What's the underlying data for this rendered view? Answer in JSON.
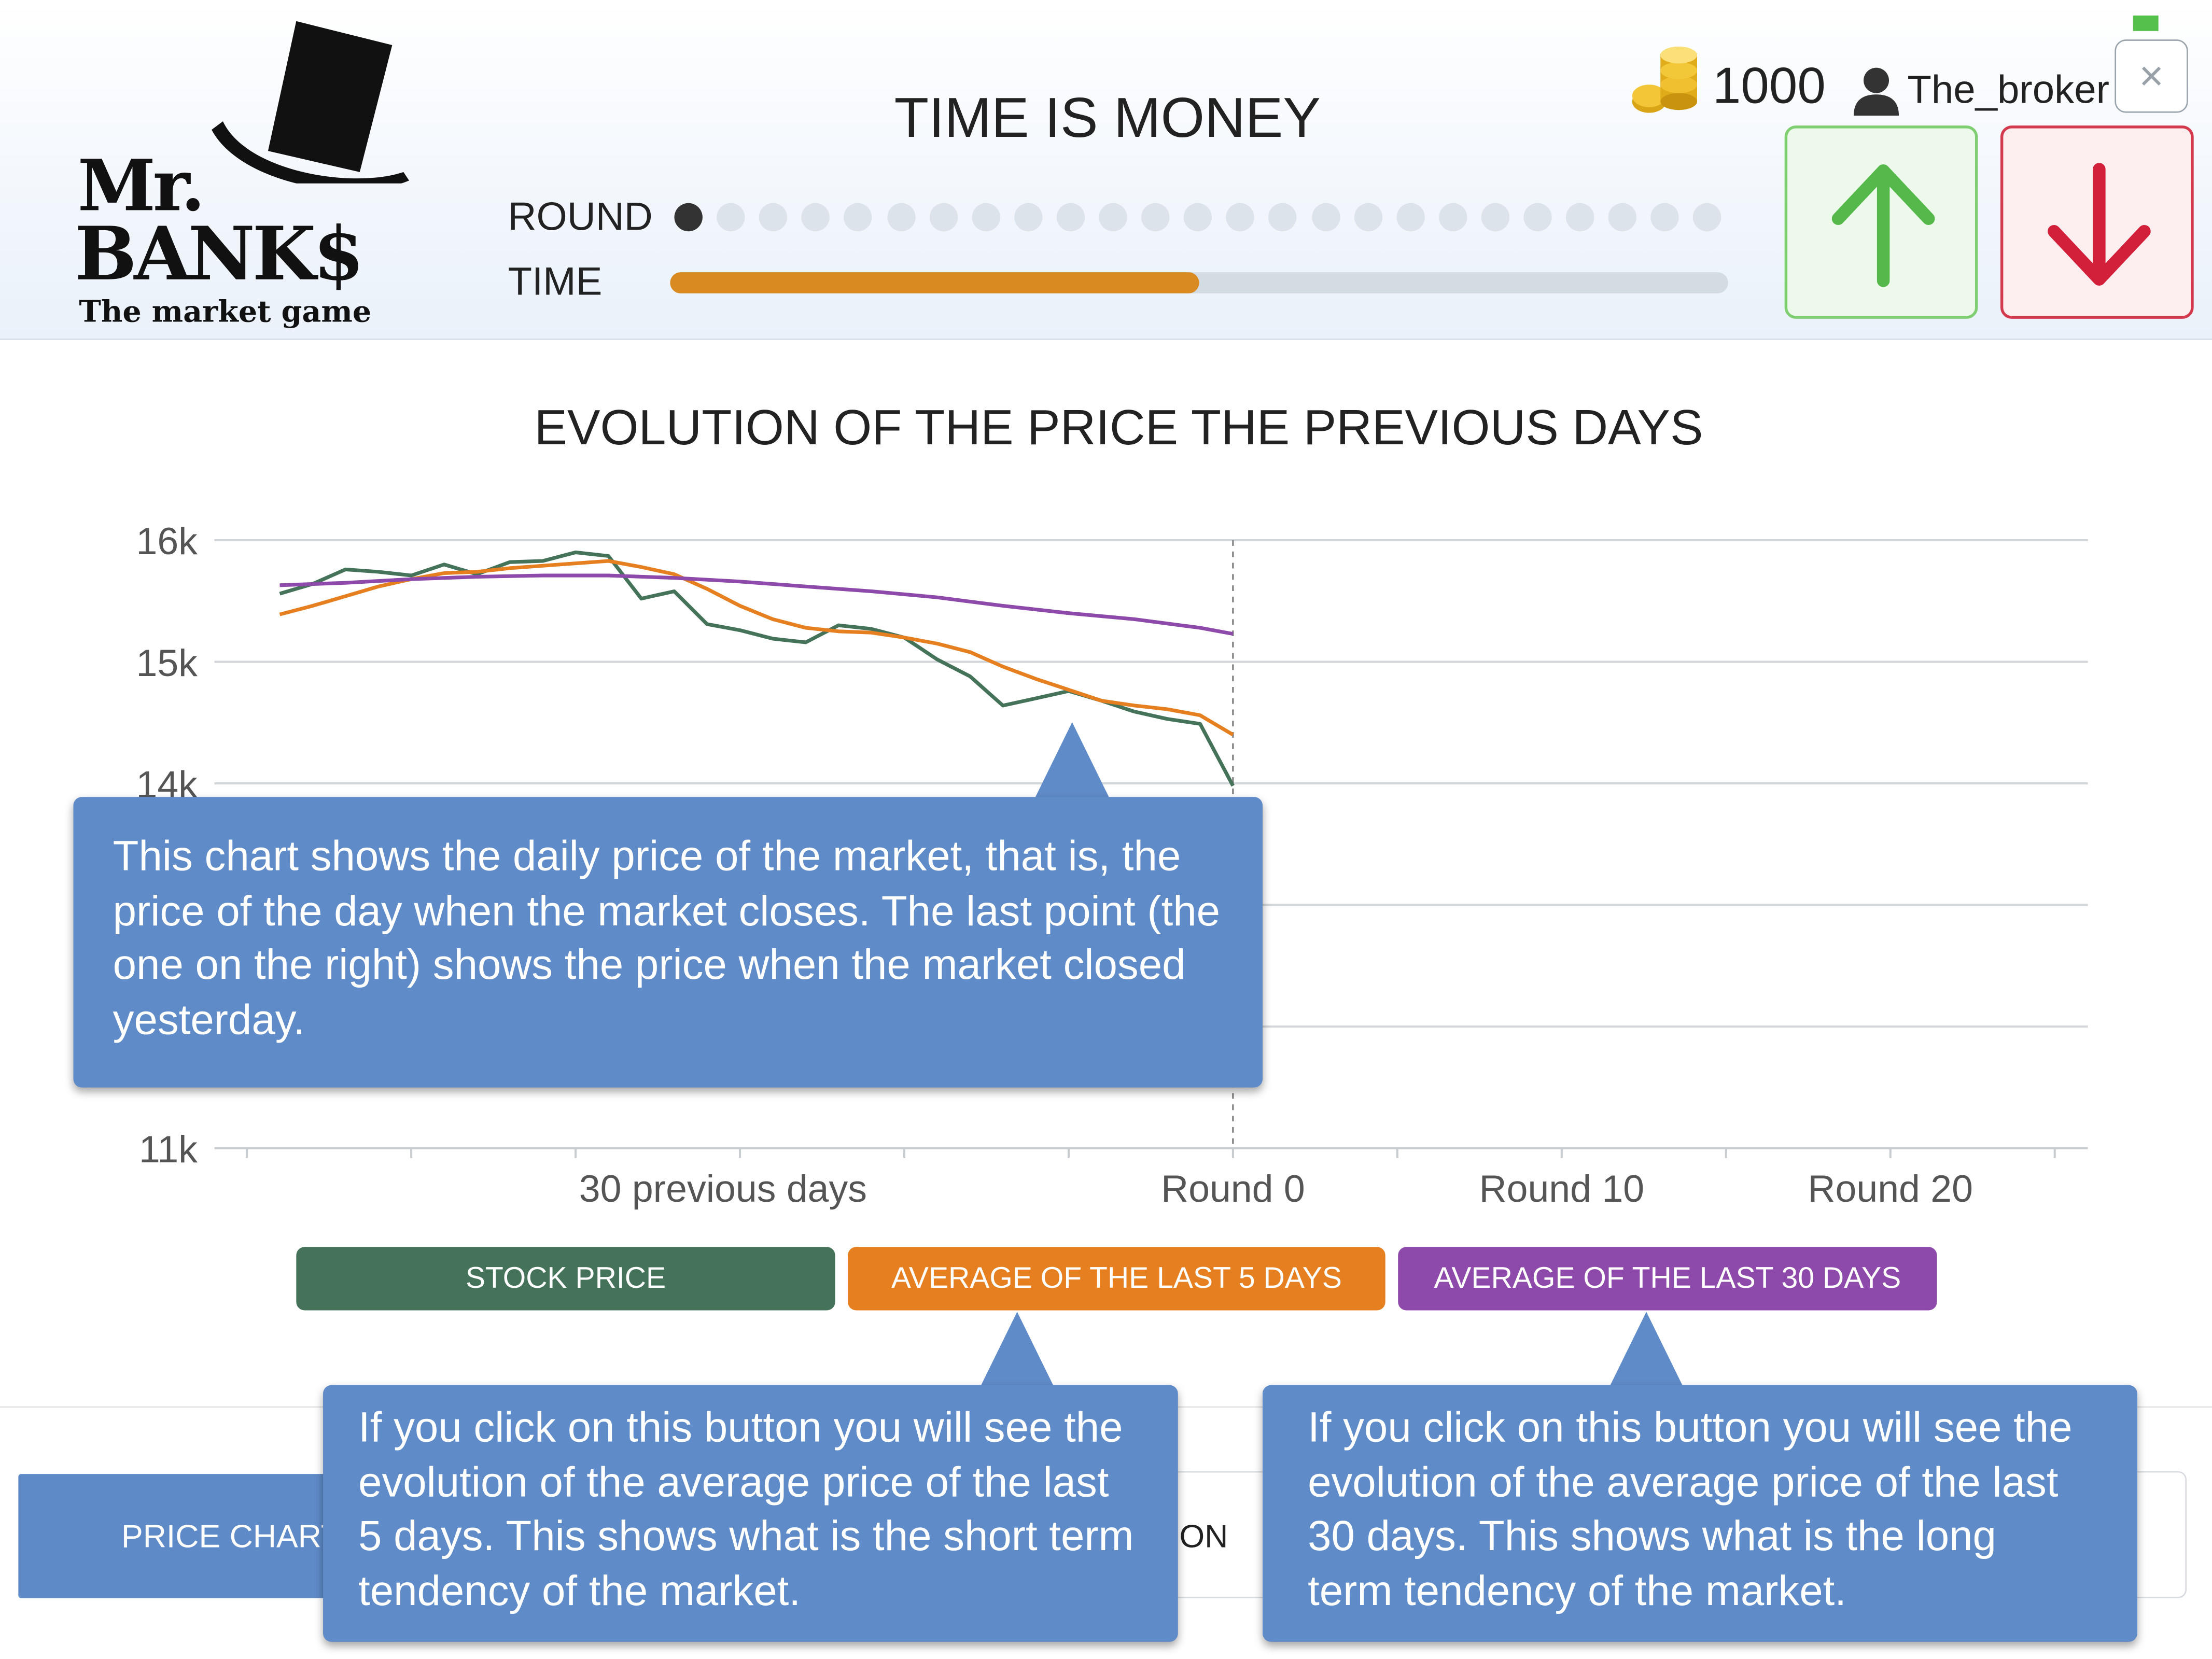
{
  "app": {
    "logo": {
      "line1": "Mr.",
      "line2": "BANK$",
      "tagline": "The market game"
    },
    "title": "TIME IS MONEY",
    "round_label": "ROUND",
    "time_label": "TIME",
    "rounds_total": 25,
    "current_round_index": 0,
    "time_progress_percent": 50,
    "money": "1000",
    "username": "The_broker",
    "close_label": "×",
    "up_button_label": "buy-up",
    "down_button_label": "sell-down"
  },
  "colors": {
    "stock": "#45735a",
    "avg5": "#e67f1f",
    "avg30": "#8e4aaa",
    "tooltip": "#5f8bc8",
    "up": "#55b84a",
    "down": "#d3203a"
  },
  "chart_data": {
    "type": "line",
    "title": "EVOLUTION OF THE PRICE THE PREVIOUS DAYS",
    "y_tick_labels": [
      "16k",
      "15k",
      "14k",
      "11k"
    ],
    "ylim": [
      11000,
      16000
    ],
    "x_tick_labels": [
      "30 previous days",
      "Round 0",
      "Round 10",
      "Round 20"
    ],
    "x_tick_positions": [
      -15,
      0,
      10,
      20
    ],
    "xlim": [
      -30,
      26
    ],
    "marker_x": 0,
    "grid": true,
    "series": [
      {
        "name": "STOCK PRICE",
        "x": [
          -29,
          -28,
          -27,
          -26,
          -25,
          -24,
          -23,
          -22,
          -21,
          -20,
          -19,
          -18,
          -17,
          -16,
          -15,
          -14,
          -13,
          -12,
          -11,
          -10,
          -9,
          -8,
          -7,
          -6,
          -5,
          -4,
          -3,
          -2,
          -1,
          0
        ],
        "values": [
          15560,
          15640,
          15760,
          15740,
          15710,
          15800,
          15720,
          15820,
          15830,
          15900,
          15870,
          15520,
          15580,
          15310,
          15260,
          15190,
          15160,
          15300,
          15270,
          15200,
          15020,
          14880,
          14640,
          14700,
          14760,
          14680,
          14590,
          14530,
          14490,
          13980
        ]
      },
      {
        "name": "AVERAGE OF THE LAST 5 DAYS",
        "x": [
          -29,
          -28,
          -27,
          -26,
          -25,
          -24,
          -23,
          -22,
          -21,
          -20,
          -19,
          -18,
          -17,
          -16,
          -15,
          -14,
          -13,
          -12,
          -11,
          -10,
          -9,
          -8,
          -7,
          -6,
          -5,
          -4,
          -3,
          -2,
          -1,
          0
        ],
        "values": [
          15390,
          15460,
          15540,
          15620,
          15680,
          15730,
          15740,
          15770,
          15790,
          15810,
          15830,
          15780,
          15720,
          15600,
          15460,
          15350,
          15280,
          15250,
          15240,
          15200,
          15150,
          15080,
          14960,
          14860,
          14770,
          14680,
          14640,
          14610,
          14560,
          14400
        ]
      },
      {
        "name": "AVERAGE OF THE LAST 30 DAYS",
        "x": [
          -29,
          -27,
          -25,
          -23,
          -21,
          -19,
          -17,
          -15,
          -13,
          -11,
          -9,
          -7,
          -5,
          -3,
          -1,
          0
        ],
        "values": [
          15630,
          15650,
          15680,
          15700,
          15710,
          15710,
          15690,
          15660,
          15620,
          15580,
          15530,
          15460,
          15400,
          15350,
          15280,
          15230
        ]
      }
    ]
  },
  "legend": {
    "stock_label": "STOCK PRICE",
    "avg5_label": "AVERAGE OF THE LAST 5 DAYS",
    "avg30_label": "AVERAGE OF THE LAST 30 DAYS"
  },
  "tabs": {
    "price_chart": "PRICE CHART",
    "opinion": "NION"
  },
  "tooltips": {
    "chart": "This chart shows the daily price of the market, that is, the price of the day when the market closes. The last point (the one on the right) shows the price when the market closed yesterday.",
    "avg5": "If you click on this button you will see the evolution of the average price of the last 5 days. This shows what is the short term tendency of the market.",
    "avg30": "If you click on this button you will see the evolution of the average price of the last 30 days. This shows what is the long term tendency of the market."
  }
}
